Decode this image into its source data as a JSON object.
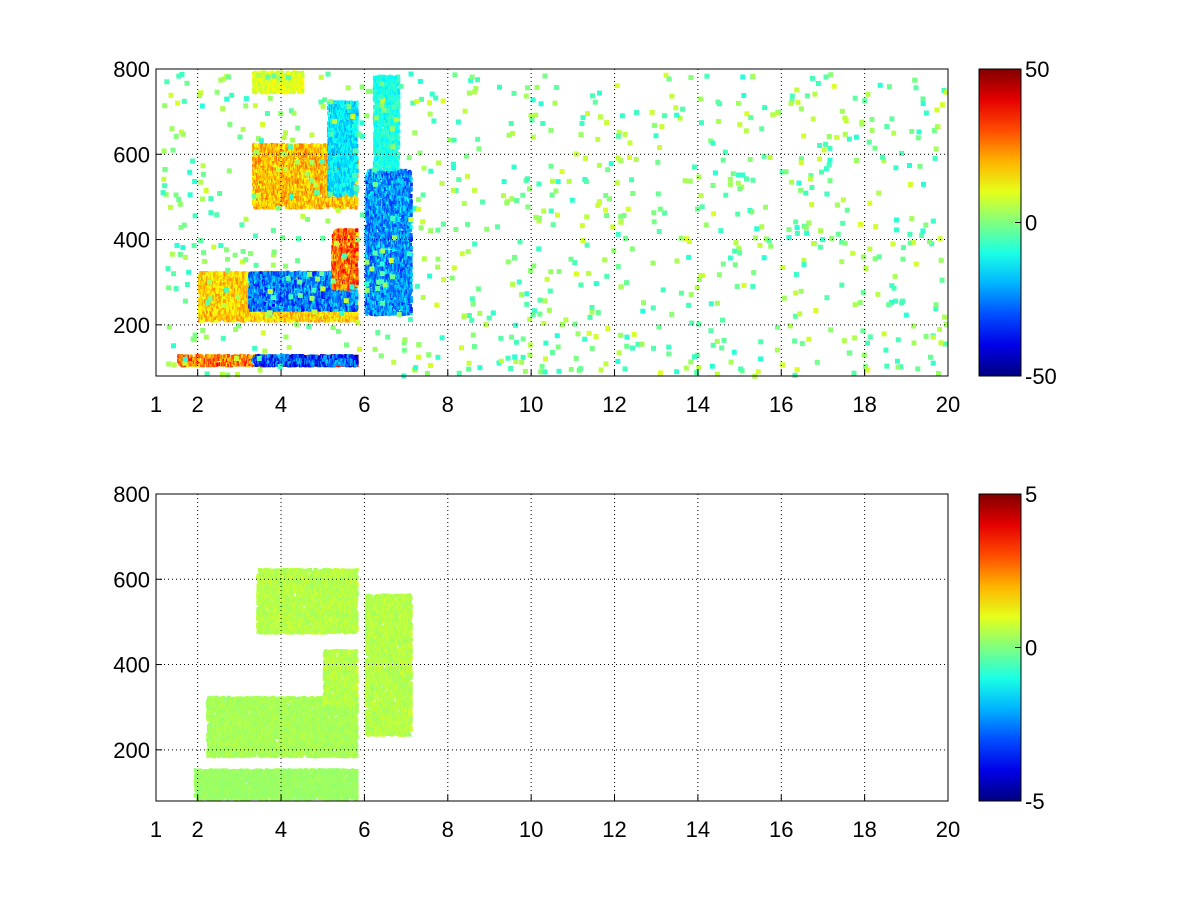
{
  "figure": {
    "background": "#ffffff",
    "grid_color": "#000000",
    "colormap": "jet"
  },
  "chart_data": [
    {
      "type": "heatmap",
      "title": "",
      "xlabel": "",
      "ylabel": "",
      "xlim": [
        1,
        20
      ],
      "ylim": [
        80,
        800
      ],
      "grid": true,
      "x_ticks": [
        1,
        2,
        4,
        6,
        8,
        10,
        12,
        14,
        16,
        18,
        20
      ],
      "x_tick_labels": [
        "1",
        "2",
        "4",
        "6",
        "8",
        "10",
        "12",
        "14",
        "16",
        "18",
        "20"
      ],
      "y_ticks": [
        200,
        400,
        600,
        800
      ],
      "y_tick_labels": [
        "200",
        "400",
        "600",
        "800"
      ],
      "colorbar": {
        "range": [
          -50,
          50
        ],
        "ticks": [
          50,
          0,
          -50
        ],
        "tick_labels": [
          "50",
          "0",
          "-50"
        ]
      },
      "features": [
        {
          "x": [
            1.5,
            5.8
          ],
          "y": [
            100,
            125
          ],
          "peak": 38,
          "level": 45
        },
        {
          "x": [
            3.3,
            5.8
          ],
          "y": [
            100,
            125
          ],
          "peak": -45,
          "level": 45
        },
        {
          "x": [
            2.0,
            5.8
          ],
          "y": [
            205,
            320
          ],
          "peak": 25,
          "level": 45
        },
        {
          "x": [
            3.2,
            5.8
          ],
          "y": [
            230,
            320
          ],
          "peak": -38,
          "level": 45
        },
        {
          "x": [
            5.2,
            5.8
          ],
          "y": [
            280,
            420
          ],
          "peak": 40,
          "level": 45
        },
        {
          "x": [
            3.3,
            5.8
          ],
          "y": [
            470,
            620
          ],
          "peak": 28,
          "level": 45
        },
        {
          "x": [
            5.1,
            5.8
          ],
          "y": [
            500,
            720
          ],
          "peak": -22,
          "level": 45
        },
        {
          "x": [
            3.3,
            4.5
          ],
          "y": [
            740,
            790
          ],
          "peak": 14,
          "level": 45
        },
        {
          "x": [
            6.0,
            7.1
          ],
          "y": [
            220,
            560
          ],
          "peak": -35,
          "level": 45
        },
        {
          "x": [
            6.2,
            6.8
          ],
          "y": [
            560,
            780
          ],
          "peak": -15,
          "level": 45
        }
      ]
    },
    {
      "type": "heatmap",
      "title": "",
      "xlabel": "",
      "ylabel": "",
      "xlim": [
        1,
        20
      ],
      "ylim": [
        80,
        800
      ],
      "grid": true,
      "x_ticks": [
        1,
        2,
        4,
        6,
        8,
        10,
        12,
        14,
        16,
        18,
        20
      ],
      "x_tick_labels": [
        "1",
        "2",
        "4",
        "6",
        "8",
        "10",
        "12",
        "14",
        "16",
        "18",
        "20"
      ],
      "y_ticks": [
        200,
        400,
        600,
        800
      ],
      "y_tick_labels": [
        "200",
        "400",
        "600",
        "800"
      ],
      "colorbar": {
        "range": [
          -5,
          5
        ],
        "ticks": [
          5,
          0,
          -5
        ],
        "tick_labels": [
          "5",
          "0",
          "-5"
        ]
      },
      "features": [
        {
          "x": [
            1.9,
            5.8
          ],
          "y": [
            80,
            150
          ],
          "peak": 0.4,
          "level": 5
        },
        {
          "x": [
            2.2,
            5.8
          ],
          "y": [
            180,
            320
          ],
          "peak": 0.6,
          "level": 5
        },
        {
          "x": [
            5.0,
            5.8
          ],
          "y": [
            300,
            430
          ],
          "peak": 0.8,
          "level": 5
        },
        {
          "x": [
            3.4,
            5.8
          ],
          "y": [
            470,
            620
          ],
          "peak": 0.8,
          "level": 5
        },
        {
          "x": [
            6.0,
            7.1
          ],
          "y": [
            230,
            560
          ],
          "peak": 0.8,
          "level": 5
        }
      ]
    }
  ]
}
